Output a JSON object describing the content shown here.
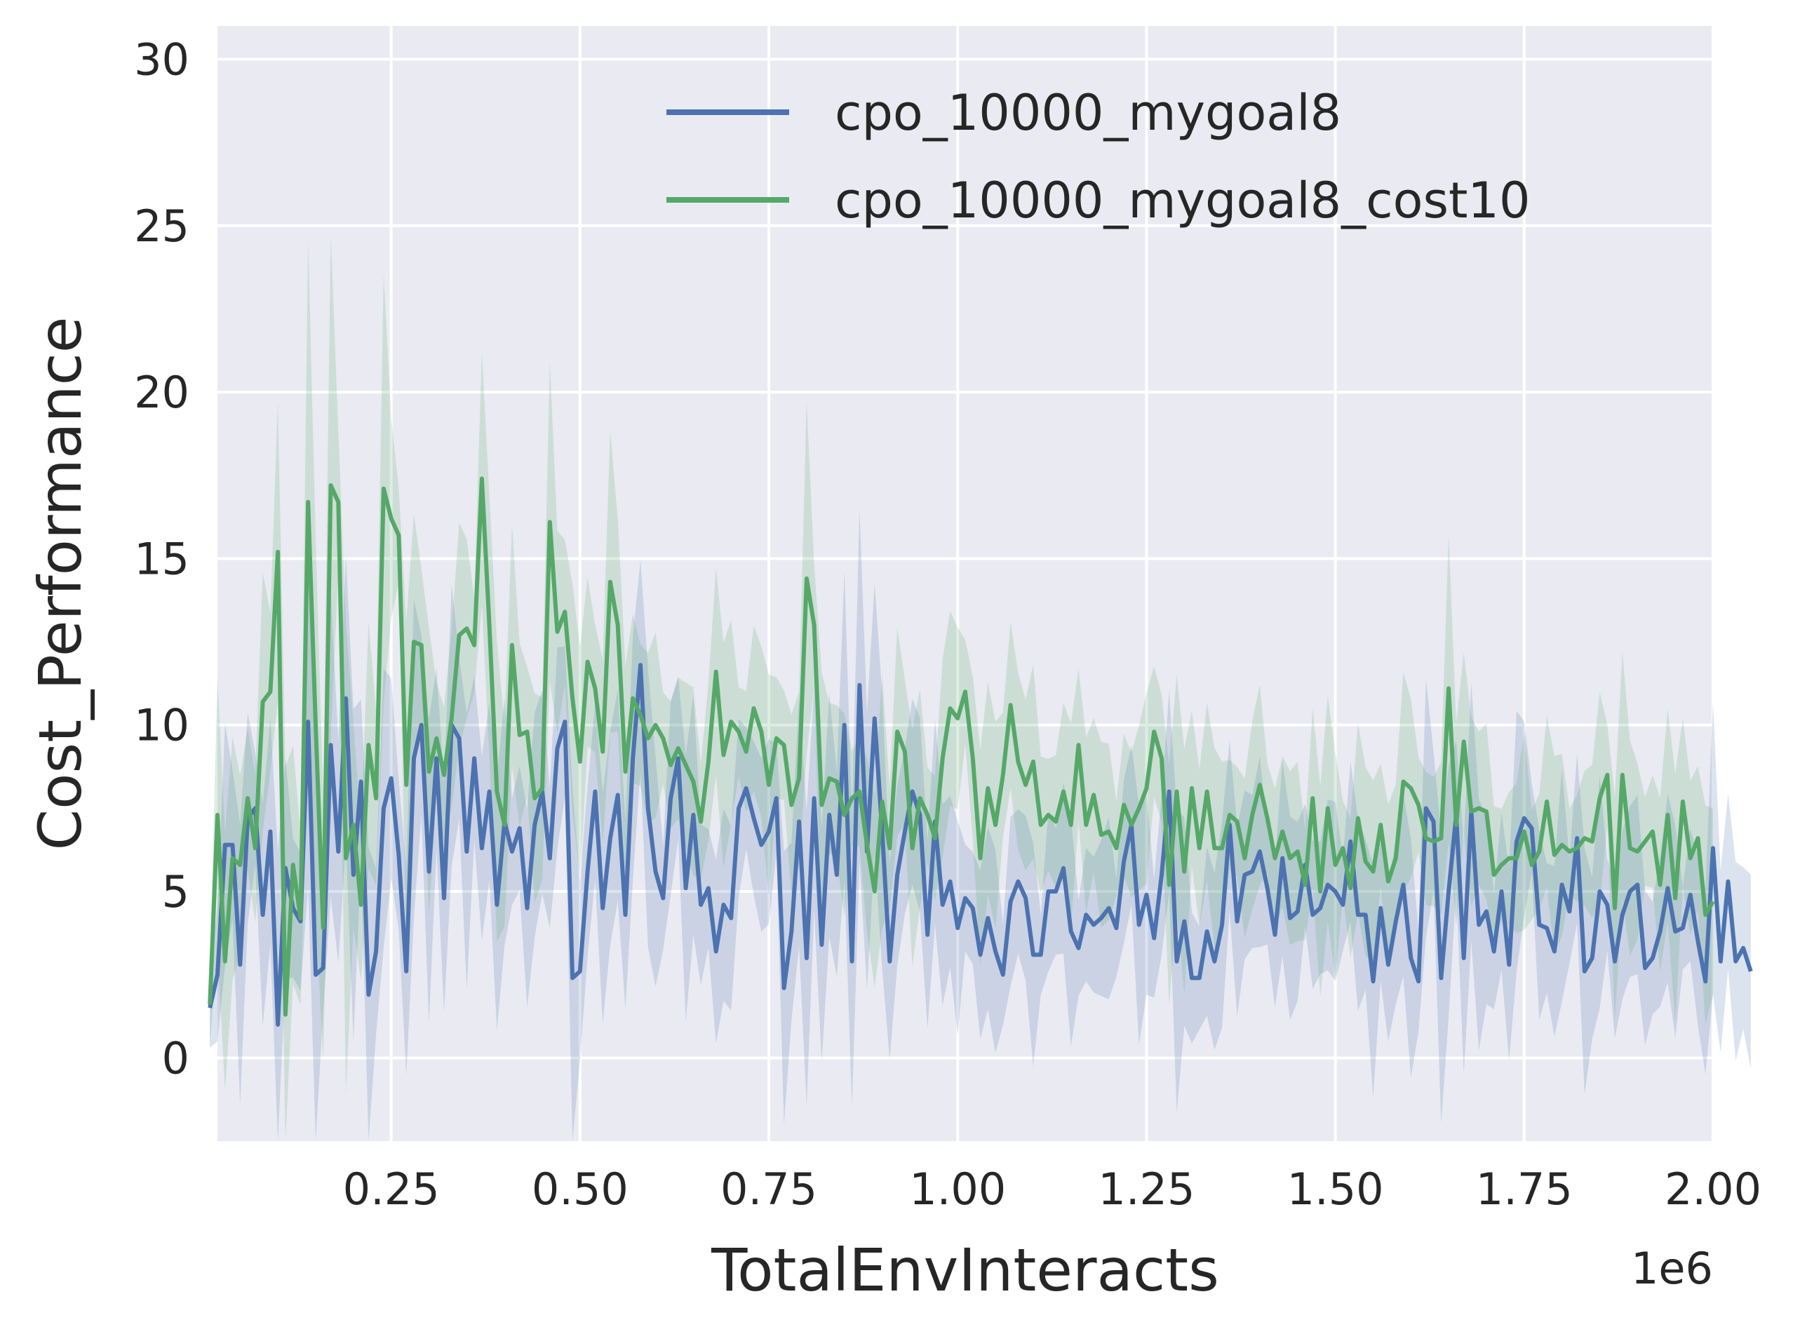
{
  "chart_data": {
    "type": "line",
    "xlabel": "TotalEnvInteracts",
    "ylabel": "Cost_Performance",
    "x_scale_label": "1e6",
    "xlim": [
      20000,
      2000000
    ],
    "ylim": [
      -2.5,
      31
    ],
    "x_ticks": [
      250000,
      500000,
      750000,
      1000000,
      1250000,
      1500000,
      1750000,
      2000000
    ],
    "x_tick_labels": [
      "0.25",
      "0.50",
      "0.75",
      "1.00",
      "1.25",
      "1.50",
      "1.75",
      "2.00"
    ],
    "y_ticks": [
      0,
      5,
      10,
      15,
      20,
      25,
      30
    ],
    "y_tick_labels": [
      "0",
      "5",
      "10",
      "15",
      "20",
      "25",
      "30"
    ],
    "grid": true,
    "legend_position": "top-right",
    "x_start": 10000,
    "x_step": 10000,
    "series": [
      {
        "name": "cpo_10000_mygoal8",
        "color": "#4c72b0",
        "values": [
          1.5,
          2.5,
          6.4,
          6.4,
          2.8,
          7.2,
          7.5,
          4.3,
          6.8,
          1.0,
          5.7,
          4.5,
          4.1,
          10.1,
          2.5,
          2.7,
          9.4,
          6.2,
          10.8,
          5.5,
          8.3,
          1.9,
          3.2,
          7.5,
          8.4,
          6.1,
          2.6,
          9.0,
          10.0,
          5.6,
          9.0,
          4.8,
          10.0,
          9.6,
          6.2,
          9.0,
          6.3,
          8.0,
          4.6,
          7.1,
          6.2,
          6.9,
          4.5,
          7.0,
          8.0,
          6.0,
          9.3,
          10.1,
          2.4,
          2.6,
          5.6,
          8.0,
          4.5,
          6.6,
          7.9,
          4.3,
          9.0,
          11.8,
          7.5,
          5.6,
          4.8,
          7.8,
          9.0,
          5.1,
          7.3,
          4.6,
          5.1,
          3.2,
          4.6,
          4.2,
          7.5,
          8.1,
          7.2,
          6.4,
          6.8,
          7.8,
          2.1,
          3.8,
          7.1,
          3.0,
          7.8,
          3.4,
          7.3,
          5.5,
          10.0,
          2.9,
          11.2,
          6.2,
          10.2,
          6.8,
          2.9,
          5.5,
          6.8,
          8.0,
          7.3,
          3.7,
          7.1,
          4.6,
          5.3,
          3.9,
          4.8,
          4.5,
          3.1,
          4.2,
          3.2,
          2.5,
          4.7,
          5.3,
          4.8,
          3.1,
          3.1,
          5.0,
          5.0,
          5.7,
          3.8,
          3.3,
          4.3,
          4.0,
          4.2,
          4.5,
          3.9,
          5.9,
          7.0,
          4.0,
          4.9,
          3.6,
          5.5,
          8.0,
          2.9,
          4.1,
          2.4,
          2.4,
          3.8,
          2.9,
          4.0,
          7.0,
          4.1,
          5.5,
          5.6,
          6.2,
          5.1,
          3.7,
          6.0,
          4.2,
          4.4,
          5.8,
          4.3,
          4.5,
          5.2,
          5.0,
          4.6,
          6.5,
          4.3,
          4.3,
          2.3,
          4.5,
          2.8,
          4.1,
          5.2,
          3.0,
          2.3,
          7.5,
          7.1,
          2.4,
          5.0,
          7.3,
          3.0,
          7.4,
          4.0,
          4.4,
          3.2,
          5.0,
          2.8,
          6.5,
          7.2,
          6.9,
          4.0,
          3.9,
          3.2,
          5.2,
          4.4,
          6.6,
          2.6,
          3.0,
          5.0,
          4.6,
          2.9,
          4.3,
          5.0,
          5.2,
          2.7,
          3.0,
          3.8,
          5.1,
          3.8,
          3.9,
          4.9,
          3.5,
          2.3,
          6.3,
          2.9,
          5.3,
          2.9,
          3.3,
          2.6
        ]
      },
      {
        "name": "cpo_10000_mygoal8_cost10",
        "color": "#55a868",
        "values": [
          1.6,
          7.3,
          2.9,
          6.0,
          5.8,
          7.8,
          6.3,
          10.7,
          11.0,
          15.2,
          1.3,
          5.8,
          4.2,
          16.7,
          10.0,
          3.9,
          17.2,
          16.7,
          6.0,
          7.0,
          4.6,
          9.4,
          7.8,
          17.1,
          16.2,
          15.7,
          8.2,
          12.5,
          12.4,
          8.6,
          9.6,
          8.5,
          10.2,
          12.7,
          12.9,
          12.4,
          17.4,
          13.0,
          8.0,
          7.0,
          12.4,
          9.7,
          9.8,
          7.8,
          8.1,
          16.1,
          12.8,
          13.4,
          10.8,
          8.9,
          11.9,
          11.1,
          9.2,
          14.3,
          13.0,
          8.6,
          10.8,
          10.3,
          9.6,
          10.0,
          9.6,
          8.8,
          9.3,
          8.8,
          8.3,
          7.1,
          8.9,
          11.6,
          9.1,
          10.1,
          9.8,
          9.2,
          10.5,
          9.8,
          8.2,
          9.6,
          9.4,
          7.6,
          8.4,
          14.4,
          13.0,
          7.6,
          8.4,
          8.3,
          7.3,
          7.8,
          8.0,
          6.4,
          5.0,
          7.7,
          6.3,
          9.8,
          9.2,
          6.3,
          7.8,
          7.3,
          6.6,
          9.0,
          10.5,
          10.2,
          11.0,
          9.0,
          6.0,
          8.1,
          7.0,
          8.5,
          10.6,
          8.9,
          8.2,
          8.9,
          7.0,
          7.3,
          7.1,
          8.0,
          7.0,
          9.4,
          7.0,
          7.9,
          6.7,
          6.8,
          6.3,
          7.6,
          7.0,
          7.5,
          8.1,
          9.8,
          9.0,
          5.2,
          8.0,
          5.6,
          8.1,
          6.3,
          8.0,
          6.3,
          6.3,
          7.3,
          7.1,
          6.0,
          7.3,
          8.2,
          7.2,
          6.0,
          6.8,
          6.0,
          6.2,
          5.2,
          7.8,
          5.0,
          7.5,
          5.8,
          6.3,
          5.1,
          7.2,
          5.9,
          5.6,
          7.0,
          5.3,
          6.0,
          8.3,
          8.1,
          7.6,
          6.6,
          6.5,
          6.6,
          11.1,
          7.0,
          9.5,
          7.4,
          7.5,
          7.4,
          5.5,
          5.8,
          6.0,
          6.0,
          6.8,
          5.8,
          6.2,
          7.7,
          6.1,
          6.4,
          6.2,
          6.3,
          6.6,
          6.5,
          7.8,
          8.5,
          4.5,
          8.5,
          6.3,
          6.2,
          6.5,
          6.8,
          5.2,
          7.3,
          4.8,
          7.7,
          6.0,
          6.6,
          4.3,
          4.7
        ]
      }
    ]
  }
}
